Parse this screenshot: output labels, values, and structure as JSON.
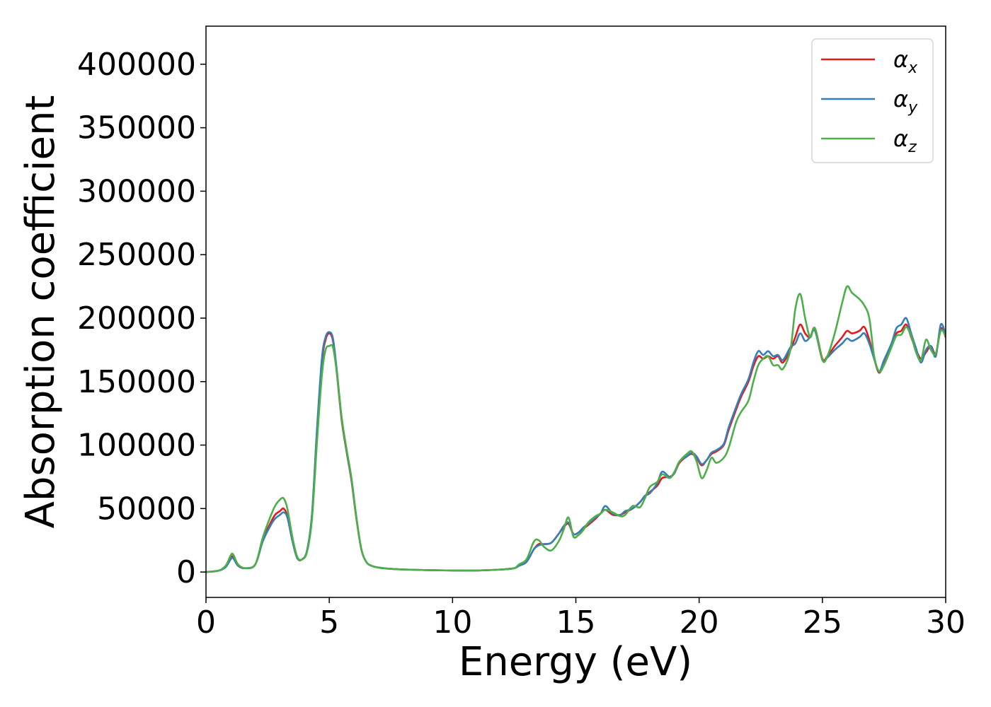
{
  "chart_data": {
    "type": "line",
    "title": "",
    "xlabel": "Energy (eV)",
    "ylabel": "Absorption coefficient",
    "xlim": [
      0,
      30
    ],
    "ylim": [
      -20000,
      430000
    ],
    "xticks": [
      "0",
      "5",
      "10",
      "15",
      "20",
      "25",
      "30"
    ],
    "xtick_values": [
      0,
      5,
      10,
      15,
      20,
      25,
      30
    ],
    "yticks": [
      "0",
      "50000",
      "100000",
      "150000",
      "200000",
      "250000",
      "300000",
      "350000",
      "400000"
    ],
    "ytick_values": [
      0,
      50000,
      100000,
      150000,
      200000,
      250000,
      300000,
      350000,
      400000
    ],
    "grid": false,
    "legend_position": "top-right",
    "legend": [
      {
        "symbol": "α",
        "subscript": "x",
        "color": "#e41a1c"
      },
      {
        "symbol": "α",
        "subscript": "y",
        "color": "#377eb8"
      },
      {
        "symbol": "α",
        "subscript": "z",
        "color": "#4daf4a"
      }
    ],
    "series": [
      {
        "name": "αx",
        "color": "#e41a1c",
        "x": [
          0,
          0.5,
          0.8,
          1.0,
          1.1,
          1.3,
          1.6,
          2.0,
          2.3,
          2.6,
          2.8,
          3.0,
          3.15,
          3.3,
          3.5,
          3.7,
          3.9,
          4.1,
          4.3,
          4.5,
          4.7,
          4.85,
          5.0,
          5.15,
          5.3,
          5.5,
          5.7,
          5.9,
          6.1,
          6.3,
          6.5,
          6.7,
          7.0,
          7.5,
          8,
          9,
          10,
          11,
          12,
          12.5,
          12.7,
          13.0,
          13.3,
          13.5,
          13.7,
          14.0,
          14.3,
          14.5,
          14.7,
          14.9,
          15.1,
          15.3,
          15.5,
          15.8,
          16.0,
          16.2,
          16.5,
          16.8,
          17.0,
          17.3,
          17.6,
          17.8,
          18.0,
          18.3,
          18.5,
          18.8,
          19.0,
          19.2,
          19.5,
          19.7,
          19.9,
          20.1,
          20.3,
          20.5,
          20.7,
          21.0,
          21.2,
          21.5,
          21.7,
          22.0,
          22.2,
          22.4,
          22.6,
          22.8,
          23.0,
          23.2,
          23.4,
          23.7,
          23.9,
          24.1,
          24.3,
          24.5,
          24.7,
          25.0,
          25.2,
          25.5,
          25.8,
          26.0,
          26.2,
          26.5,
          26.7,
          26.9,
          27.1,
          27.3,
          27.5,
          27.8,
          28.0,
          28.2,
          28.4,
          28.6,
          28.8,
          29.0,
          29.2,
          29.4,
          29.6,
          29.8,
          30.0
        ],
        "y": [
          0,
          1000,
          4000,
          11000,
          12000,
          5000,
          3000,
          6000,
          25000,
          38000,
          45000,
          48000,
          50000,
          44000,
          25000,
          11000,
          10000,
          17000,
          45000,
          110000,
          165000,
          183000,
          188000,
          182000,
          158000,
          120000,
          95000,
          72000,
          42000,
          18000,
          8000,
          5000,
          3500,
          2500,
          2000,
          1500,
          1200,
          1200,
          2000,
          3000,
          5000,
          8000,
          18000,
          22000,
          22000,
          23000,
          30000,
          35000,
          38000,
          30000,
          31000,
          34000,
          37000,
          42000,
          46000,
          49000,
          45000,
          45000,
          47000,
          50000,
          55000,
          60000,
          63000,
          68000,
          74000,
          75000,
          78000,
          86000,
          91000,
          93000,
          90000,
          84000,
          88000,
          93000,
          95000,
          100000,
          112000,
          128000,
          138000,
          150000,
          162000,
          170000,
          168000,
          170000,
          168000,
          170000,
          165000,
          175000,
          185000,
          195000,
          188000,
          185000,
          192000,
          168000,
          170000,
          178000,
          185000,
          190000,
          188000,
          190000,
          193000,
          183000,
          168000,
          157000,
          165000,
          178000,
          188000,
          190000,
          195000,
          185000,
          175000,
          168000,
          173000,
          178000,
          172000,
          192000,
          185000
        ]
      },
      {
        "name": "αy",
        "color": "#377eb8",
        "x": [
          0,
          0.5,
          0.8,
          1.0,
          1.1,
          1.3,
          1.6,
          2.0,
          2.3,
          2.6,
          2.8,
          3.0,
          3.15,
          3.3,
          3.5,
          3.7,
          3.9,
          4.1,
          4.3,
          4.5,
          4.7,
          4.85,
          5.0,
          5.15,
          5.3,
          5.5,
          5.7,
          5.9,
          6.1,
          6.3,
          6.5,
          6.7,
          7.0,
          7.5,
          8,
          9,
          10,
          11,
          12,
          12.5,
          12.7,
          13.0,
          13.3,
          13.5,
          13.7,
          14.0,
          14.3,
          14.5,
          14.7,
          14.9,
          15.1,
          15.3,
          15.5,
          15.8,
          16.0,
          16.2,
          16.5,
          16.8,
          17.0,
          17.3,
          17.6,
          17.8,
          18.0,
          18.3,
          18.5,
          18.8,
          19.0,
          19.2,
          19.5,
          19.7,
          19.9,
          20.1,
          20.3,
          20.5,
          20.7,
          21.0,
          21.2,
          21.5,
          21.7,
          22.0,
          22.2,
          22.4,
          22.6,
          22.8,
          23.0,
          23.2,
          23.4,
          23.7,
          23.9,
          24.1,
          24.3,
          24.5,
          24.7,
          25.0,
          25.2,
          25.5,
          25.8,
          26.0,
          26.2,
          26.5,
          26.7,
          26.9,
          27.1,
          27.3,
          27.5,
          27.8,
          28.0,
          28.2,
          28.4,
          28.6,
          28.8,
          29.0,
          29.2,
          29.4,
          29.6,
          29.8,
          30.0
        ],
        "y": [
          0,
          1000,
          4000,
          10000,
          11000,
          5000,
          3000,
          6000,
          24000,
          36000,
          42000,
          45000,
          47000,
          43000,
          25000,
          11000,
          10000,
          17000,
          46000,
          112000,
          168000,
          185000,
          189000,
          184000,
          160000,
          122000,
          96000,
          73000,
          43000,
          18000,
          8000,
          5000,
          3500,
          2500,
          2000,
          1500,
          1200,
          1200,
          2000,
          3000,
          5000,
          8000,
          18000,
          21000,
          22000,
          23000,
          30000,
          36000,
          39000,
          30000,
          31000,
          35000,
          38000,
          43000,
          46000,
          52000,
          46000,
          45000,
          48000,
          50000,
          55000,
          60000,
          62000,
          70000,
          79000,
          75000,
          78000,
          87000,
          91000,
          94000,
          91000,
          85000,
          88000,
          94000,
          96000,
          101000,
          114000,
          130000,
          140000,
          152000,
          165000,
          174000,
          171000,
          174000,
          170000,
          171000,
          167000,
          177000,
          180000,
          188000,
          182000,
          185000,
          190000,
          167000,
          169000,
          175000,
          180000,
          184000,
          182000,
          185000,
          188000,
          180000,
          168000,
          158000,
          167000,
          180000,
          192000,
          195000,
          200000,
          188000,
          176000,
          165000,
          175000,
          178000,
          170000,
          195000,
          187000
        ]
      },
      {
        "name": "αz",
        "color": "#4daf4a",
        "x": [
          0,
          0.5,
          0.8,
          1.0,
          1.1,
          1.3,
          1.6,
          2.0,
          2.3,
          2.6,
          2.8,
          3.0,
          3.15,
          3.3,
          3.5,
          3.7,
          3.9,
          4.1,
          4.3,
          4.5,
          4.7,
          4.85,
          5.0,
          5.15,
          5.3,
          5.5,
          5.7,
          5.9,
          6.1,
          6.3,
          6.5,
          6.7,
          7.0,
          7.5,
          8,
          9,
          10,
          11,
          12,
          12.5,
          12.7,
          13.0,
          13.3,
          13.5,
          13.7,
          14.0,
          14.3,
          14.5,
          14.7,
          14.9,
          15.1,
          15.3,
          15.5,
          15.8,
          16.0,
          16.2,
          16.5,
          16.8,
          17.0,
          17.3,
          17.6,
          17.8,
          18.0,
          18.3,
          18.5,
          18.8,
          19.0,
          19.2,
          19.5,
          19.7,
          19.9,
          20.1,
          20.3,
          20.5,
          20.7,
          21.0,
          21.2,
          21.5,
          21.7,
          22.0,
          22.2,
          22.4,
          22.6,
          22.8,
          23.0,
          23.2,
          23.4,
          23.7,
          23.9,
          24.1,
          24.3,
          24.5,
          24.7,
          25.0,
          25.2,
          25.5,
          25.8,
          26.0,
          26.2,
          26.5,
          26.7,
          26.9,
          27.1,
          27.3,
          27.5,
          27.8,
          28.0,
          28.2,
          28.4,
          28.6,
          28.8,
          29.0,
          29.2,
          29.4,
          29.6,
          29.8,
          30.0
        ],
        "y": [
          0,
          1000,
          5000,
          13000,
          14000,
          6000,
          3000,
          6000,
          27000,
          43000,
          52000,
          57000,
          58000,
          50000,
          28000,
          12000,
          10000,
          16000,
          42000,
          102000,
          155000,
          175000,
          178000,
          177000,
          158000,
          122000,
          97000,
          74000,
          43000,
          18000,
          8000,
          5000,
          3500,
          2500,
          2000,
          1500,
          1200,
          1200,
          2000,
          3000,
          6000,
          10000,
          24000,
          25000,
          20000,
          17000,
          24000,
          33000,
          43000,
          28000,
          29000,
          33000,
          39000,
          44000,
          46000,
          49000,
          47000,
          44000,
          45000,
          52000,
          51000,
          58000,
          67000,
          71000,
          77000,
          74000,
          79000,
          87000,
          93000,
          95000,
          87000,
          74000,
          80000,
          90000,
          86000,
          90000,
          98000,
          118000,
          126000,
          135000,
          150000,
          163000,
          168000,
          170000,
          163000,
          163000,
          160000,
          175000,
          207000,
          219000,
          200000,
          185000,
          192000,
          167000,
          170000,
          188000,
          212000,
          225000,
          220000,
          215000,
          210000,
          200000,
          170000,
          158000,
          163000,
          177000,
          186000,
          187000,
          193000,
          186000,
          173000,
          167000,
          183000,
          175000,
          172000,
          190000,
          186000
        ]
      }
    ]
  }
}
